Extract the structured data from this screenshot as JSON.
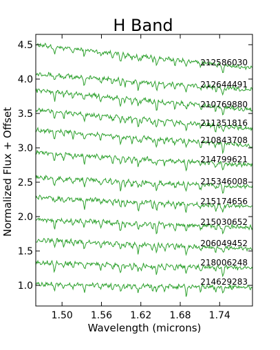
{
  "chart_data": {
    "type": "line",
    "title": "H Band",
    "xlabel": "Wavelength (microns)",
    "ylabel": "Normalized Flux + Offset",
    "xlim": [
      1.46,
      1.79
    ],
    "ylim": [
      0.7,
      4.65
    ],
    "x_ticks": [
      1.5,
      1.56,
      1.62,
      1.68,
      1.74
    ],
    "x_tick_labels": [
      "1.50",
      "1.56",
      "1.62",
      "1.68",
      "1.74"
    ],
    "y_ticks": [
      1.0,
      1.5,
      2.0,
      2.5,
      3.0,
      3.5,
      4.0,
      4.5
    ],
    "y_tick_labels": [
      "1.0",
      "1.5",
      "2.0",
      "2.5",
      "3.0",
      "3.5",
      "4.0",
      "4.5"
    ],
    "grid": false,
    "line_color": "#2ca02c",
    "series": [
      {
        "name": "212586030",
        "start": 4.5,
        "end": 4.16
      },
      {
        "name": "212644491",
        "start": 4.08,
        "end": 3.84
      },
      {
        "name": "210769880",
        "start": 3.84,
        "end": 3.55
      },
      {
        "name": "211351816",
        "start": 3.55,
        "end": 3.28
      },
      {
        "name": "210843708",
        "start": 3.26,
        "end": 3.03
      },
      {
        "name": "214799621",
        "start": 2.93,
        "end": 2.75
      },
      {
        "name": "215346008",
        "start": 2.57,
        "end": 2.43
      },
      {
        "name": "215174656",
        "start": 2.28,
        "end": 2.14
      },
      {
        "name": "215030652",
        "start": 1.96,
        "end": 1.84
      },
      {
        "name": "206049452",
        "start": 1.66,
        "end": 1.53
      },
      {
        "name": "218006248",
        "start": 1.33,
        "end": 1.25
      },
      {
        "name": "214629283",
        "start": 1.02,
        "end": 0.97
      }
    ],
    "absorption_lines_microns": [
      1.4885,
      1.5025,
      1.5166,
      1.534,
      1.559,
      1.577,
      1.589,
      1.596,
      1.6065,
      1.616,
      1.62,
      1.638,
      1.644,
      1.656,
      1.672,
      1.689,
      1.711,
      1.734,
      1.745
    ]
  }
}
